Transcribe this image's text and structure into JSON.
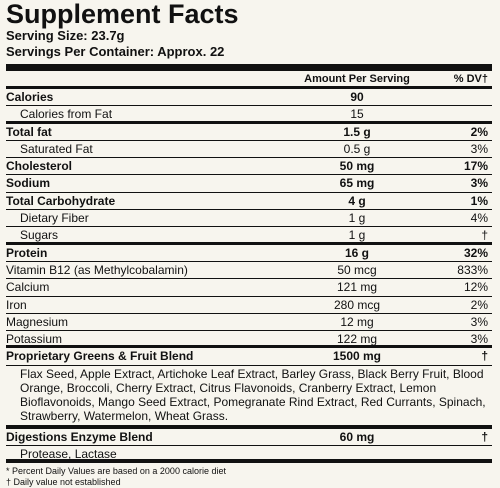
{
  "title": "Supplement Facts",
  "serving_size": "Serving Size: 23.7g",
  "servings_per_container": "Servings Per Container: Approx. 22",
  "header": {
    "amount": "Amount Per Serving",
    "dv": "% DV†"
  },
  "rows": [
    {
      "name": "Calories",
      "amount": "90"
    },
    {
      "name": "Calories from Fat",
      "amount": "15"
    },
    {
      "name": "Total fat",
      "amount": "1.5 g",
      "dv": "2%"
    },
    {
      "name": "Saturated Fat",
      "amount": "0.5 g",
      "dv": "3%"
    },
    {
      "name": "Cholesterol",
      "amount": "50 mg",
      "dv": "17%"
    },
    {
      "name": "Sodium",
      "amount": "65 mg",
      "dv": "3%"
    },
    {
      "name": "Total Carbohydrate",
      "amount": "4 g",
      "dv": "1%"
    },
    {
      "name": "Dietary Fiber",
      "amount": "1 g",
      "dv": "4%"
    },
    {
      "name": "Sugars",
      "amount": "1 g",
      "dv": "†"
    },
    {
      "name": "Protein",
      "amount": "16 g",
      "dv": "32%"
    },
    {
      "name": "Vitamin B12 (as Methylcobalamin)",
      "amount": "50 mcg",
      "dv": "833%"
    },
    {
      "name": "Calcium",
      "amount": "121 mg",
      "dv": "12%"
    },
    {
      "name": "Iron",
      "amount": "280 mcg",
      "dv": "2%"
    },
    {
      "name": "Magnesium",
      "amount": "12 mg",
      "dv": "3%"
    },
    {
      "name": "Potassium",
      "amount": "122 mg",
      "dv": "3%"
    },
    {
      "name": "Proprietary Greens & Fruit Blend",
      "amount": "1500 mg",
      "dv": "†"
    },
    {
      "name": "Flax Seed, Apple Extract, Artichoke Leaf Extract, Barley Grass, Black Berry Fruit, Blood Orange, Broccoli, Cherry Extract, Citrus Flavonoids, Cranberry Extract, Lemon Bioflavonoids, Mango Seed Extract, Pomegranate Rind Extract, Red Currants, Spinach, Strawberry, Watermelon, Wheat Grass."
    },
    {
      "name": "Digestions Enzyme Blend",
      "amount": "60 mg",
      "dv": "†"
    },
    {
      "name": "Protease, Lactase"
    }
  ],
  "footnotes": [
    "* Percent Daily Values are based on a 2000 calorie diet",
    "† Daily value not established"
  ]
}
